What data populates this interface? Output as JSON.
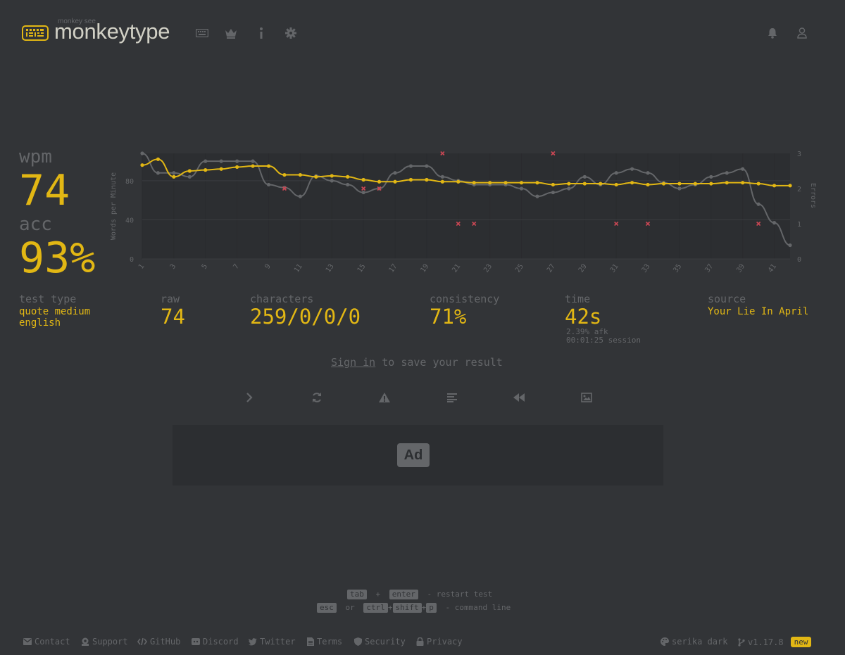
{
  "header": {
    "logo_small": "monkey see",
    "logo_text": "monkeytype",
    "nav": [
      "keyboard-icon",
      "crown-icon",
      "info-icon",
      "gear-icon"
    ],
    "right": [
      "bell-icon",
      "user-icon"
    ]
  },
  "stats": {
    "wpm_label": "wpm",
    "wpm_value": "74",
    "acc_label": "acc",
    "acc_value": "93%",
    "test_type_label": "test type",
    "test_type_line1": "quote medium",
    "test_type_line2": "english",
    "raw_label": "raw",
    "raw_value": "74",
    "characters_label": "characters",
    "characters_value": "259/0/0/0",
    "consistency_label": "consistency",
    "consistency_value": "71%",
    "time_label": "time",
    "time_value": "42s",
    "afk": "2.39% afk",
    "session": "00:01:25 session",
    "source_label": "source",
    "source_value": "Your Lie In April"
  },
  "signin": {
    "link": "Sign in",
    "rest": " to save your result"
  },
  "actions": [
    "next-test-icon",
    "restart-icon",
    "report-icon",
    "words-history-icon",
    "replay-icon",
    "screenshot-icon"
  ],
  "ad": {
    "label": "Ad"
  },
  "hints": {
    "line1": {
      "k1": "tab",
      "plus": "+",
      "k2": "enter",
      "text": "- restart test"
    },
    "line2": {
      "k1": "esc",
      "or": "or",
      "k2": "ctrl",
      "plus1": "+",
      "k3": "shift",
      "plus2": "+",
      "k4": "p",
      "text": "- command line"
    }
  },
  "footer": {
    "contact": "Contact",
    "support": "Support",
    "github": "GitHub",
    "discord": "Discord",
    "twitter": "Twitter",
    "terms": "Terms",
    "security": "Security",
    "privacy": "Privacy",
    "theme": "serika dark",
    "version": "v1.17.8",
    "new": "new"
  },
  "colors": {
    "background": "#323437",
    "chart_bg": "#2c2e31",
    "accent": "#e2b714",
    "sub": "#646669",
    "text": "#d1d0c5",
    "error": "#ca4754"
  },
  "chart_data": {
    "type": "line",
    "xlabel": "",
    "ylabel": "Words per Minute",
    "y2label": "Errors",
    "x": [
      1,
      2,
      3,
      4,
      5,
      6,
      7,
      8,
      9,
      10,
      11,
      12,
      13,
      14,
      15,
      16,
      17,
      18,
      19,
      20,
      21,
      22,
      23,
      24,
      25,
      26,
      27,
      28,
      29,
      30,
      31,
      32,
      33,
      34,
      35,
      36,
      37,
      38,
      39,
      40,
      41,
      42
    ],
    "x_ticks": [
      "1",
      "3",
      "5",
      "7",
      "9",
      "11",
      "13",
      "15",
      "17",
      "19",
      "21",
      "23",
      "25",
      "27",
      "29",
      "31",
      "33",
      "35",
      "37",
      "39",
      "41"
    ],
    "y_ticks": [
      "0",
      "40",
      "80"
    ],
    "y2_ticks": [
      "0",
      "1",
      "2",
      "3"
    ],
    "ylim": [
      0,
      108
    ],
    "y2lim": [
      0,
      3
    ],
    "series": [
      {
        "name": "raw",
        "color": "#646669",
        "values": [
          108,
          88,
          88,
          84,
          100,
          100,
          100,
          100,
          76,
          73,
          64,
          85,
          80,
          76,
          68,
          72,
          88,
          95,
          95,
          84,
          80,
          76,
          76,
          76,
          72,
          64,
          68,
          72,
          84,
          76,
          88,
          92,
          88,
          78,
          72,
          76,
          84,
          88,
          92,
          56,
          37,
          14
        ]
      },
      {
        "name": "wpm",
        "color": "#e2b714",
        "values": [
          96,
          102,
          84,
          90,
          91,
          92,
          94,
          95,
          95,
          86,
          86,
          84,
          85,
          84,
          81,
          79,
          79,
          81,
          81,
          79,
          79,
          78,
          78,
          78,
          78,
          78,
          76,
          77,
          77,
          77,
          76,
          78,
          76,
          77,
          77,
          77,
          77,
          78,
          78,
          77,
          75,
          75
        ]
      }
    ],
    "errors": [
      {
        "x": 10,
        "y": 2
      },
      {
        "x": 15,
        "y": 2
      },
      {
        "x": 16,
        "y": 2
      },
      {
        "x": 20,
        "y": 3
      },
      {
        "x": 21,
        "y": 1
      },
      {
        "x": 22,
        "y": 1
      },
      {
        "x": 27,
        "y": 3
      },
      {
        "x": 31,
        "y": 1
      },
      {
        "x": 33,
        "y": 1
      },
      {
        "x": 40,
        "y": 1
      }
    ]
  }
}
